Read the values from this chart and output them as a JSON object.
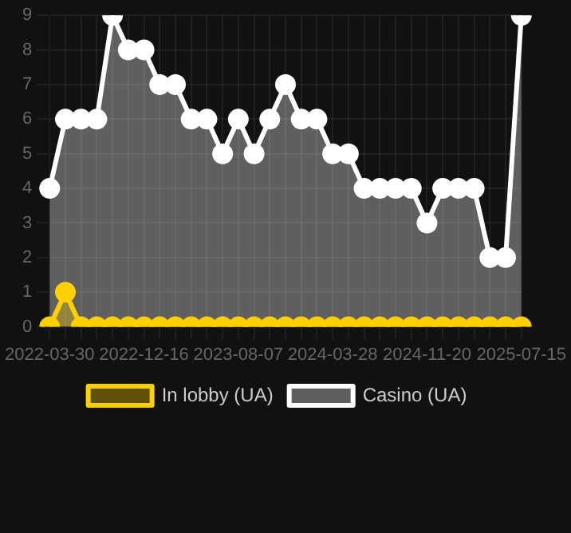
{
  "chart_data": {
    "type": "area",
    "categories": [
      "2022-03-30",
      null,
      null,
      null,
      null,
      null,
      "2022-12-16",
      null,
      null,
      null,
      null,
      null,
      "2023-08-07",
      null,
      null,
      null,
      null,
      null,
      "2024-03-28",
      null,
      null,
      null,
      null,
      null,
      "2024-11-20",
      null,
      null,
      null,
      null,
      null,
      "2025-07-15"
    ],
    "series": [
      {
        "name": "In lobby (UA)",
        "color": "#ffd000",
        "values": [
          0,
          1,
          0,
          0,
          0,
          0,
          0,
          0,
          0,
          0,
          0,
          0,
          0,
          0,
          0,
          0,
          0,
          0,
          0,
          0,
          0,
          0,
          0,
          0,
          0,
          0,
          0,
          0,
          0,
          0,
          0
        ]
      },
      {
        "name": "Casino (UA)",
        "color": "#ffffff",
        "values": [
          4,
          6,
          6,
          6,
          9,
          8,
          8,
          7,
          7,
          6,
          6,
          5,
          6,
          5,
          6,
          7,
          6,
          6,
          5,
          5,
          4,
          4,
          4,
          4,
          3,
          4,
          4,
          4,
          2,
          2,
          9
        ]
      }
    ],
    "ylim": [
      0,
      9
    ],
    "yticks": [
      0,
      1,
      2,
      3,
      4,
      5,
      6,
      7,
      8,
      9
    ],
    "grid": true,
    "legend": "bottom",
    "marker": "circle"
  }
}
